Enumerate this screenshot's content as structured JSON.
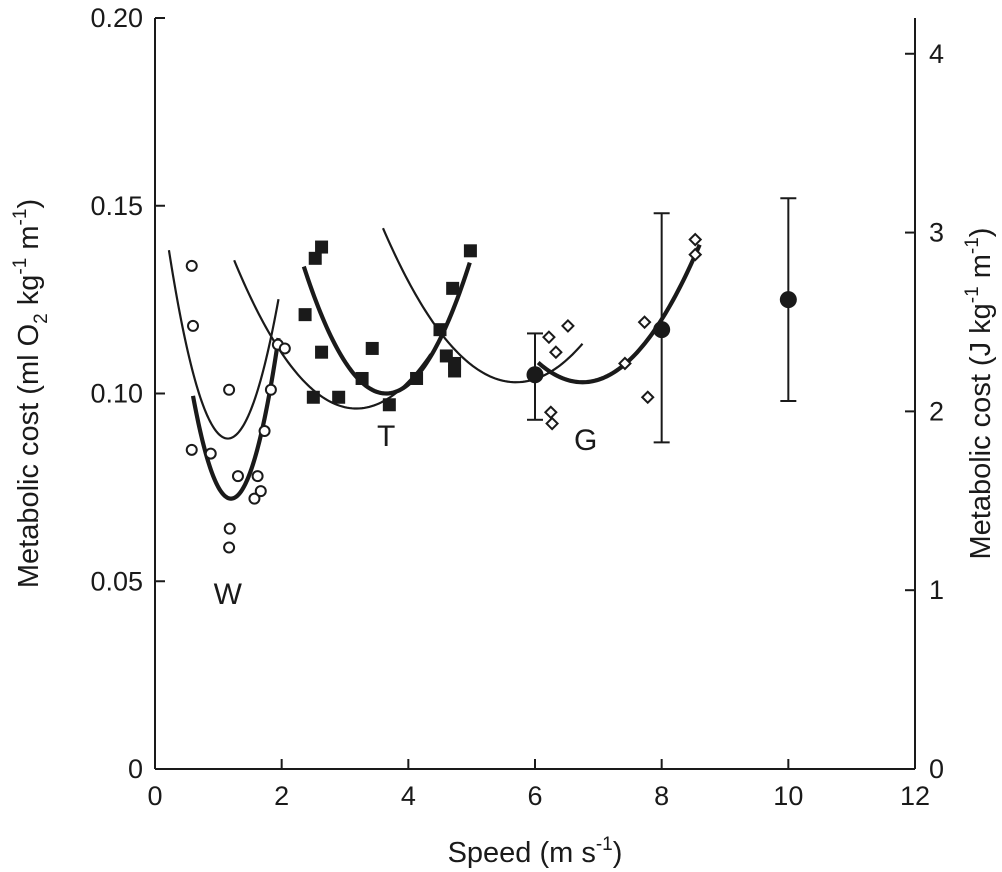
{
  "chart_data": {
    "type": "scatter",
    "title": "",
    "xlabel": "Speed (m s",
    "xlabel_sup": "-1",
    "xlabel_close": ")",
    "ylabel_left": {
      "prefix": "Metabolic cost (ml O",
      "sub": "2",
      "mid1": "  kg",
      "sup1": "-1",
      "mid2": " m",
      "sup2": "-1",
      "suffix": ")"
    },
    "ylabel_right": {
      "prefix": "Metabolic cost (J kg",
      "sup1": "-1",
      "mid": " m",
      "sup2": "-1",
      "suffix": ")"
    },
    "xlim": [
      0,
      12
    ],
    "ylim_left": [
      0,
      0.2
    ],
    "ylim_right": [
      0,
      4.2
    ],
    "x_ticks": [
      0,
      2,
      4,
      6,
      8,
      10,
      12
    ],
    "x_tick_labels": [
      "0",
      "2",
      "4",
      "6",
      "8",
      "10",
      "12"
    ],
    "y_left_ticks": [
      0,
      0.05,
      0.1,
      0.15,
      0.2
    ],
    "y_left_tick_labels": [
      "0",
      "0.05",
      "0.10",
      "0.15",
      "0.20"
    ],
    "y_right_ticks": [
      0,
      1,
      2,
      3,
      4
    ],
    "y_right_tick_labels": [
      "0",
      "1",
      "2",
      "3",
      "4"
    ],
    "grid": false,
    "group_labels": [
      {
        "text": "W",
        "x": 1.15,
        "y": 0.044
      },
      {
        "text": "T",
        "x": 3.65,
        "y": 0.086
      },
      {
        "text": "G",
        "x": 6.8,
        "y": 0.085
      }
    ],
    "series": [
      {
        "marker": "open-circle",
        "points": [
          [
            0.58,
            0.134
          ],
          [
            0.6,
            0.118
          ],
          [
            0.58,
            0.085
          ],
          [
            0.88,
            0.084
          ],
          [
            1.17,
            0.101
          ],
          [
            1.31,
            0.078
          ],
          [
            1.18,
            0.064
          ],
          [
            1.17,
            0.059
          ],
          [
            1.57,
            0.072
          ],
          [
            1.62,
            0.078
          ],
          [
            1.67,
            0.074
          ],
          [
            1.73,
            0.09
          ],
          [
            1.83,
            0.101
          ],
          [
            1.94,
            0.113
          ],
          [
            2.05,
            0.112
          ]
        ]
      },
      {
        "marker": "filled-square",
        "points": [
          [
            2.37,
            0.121
          ],
          [
            2.5,
            0.099
          ],
          [
            2.53,
            0.136
          ],
          [
            2.63,
            0.139
          ],
          [
            2.63,
            0.111
          ],
          [
            2.9,
            0.099
          ],
          [
            3.27,
            0.104
          ],
          [
            3.43,
            0.112
          ],
          [
            3.7,
            0.097
          ],
          [
            4.13,
            0.104
          ],
          [
            4.5,
            0.117
          ],
          [
            4.6,
            0.11
          ],
          [
            4.7,
            0.128
          ],
          [
            4.73,
            0.108
          ],
          [
            4.73,
            0.106
          ],
          [
            4.98,
            0.138
          ]
        ]
      },
      {
        "marker": "open-diamond",
        "points": [
          [
            6.22,
            0.115
          ],
          [
            6.33,
            0.111
          ],
          [
            6.52,
            0.118
          ],
          [
            6.25,
            0.095
          ],
          [
            6.27,
            0.092
          ],
          [
            7.42,
            0.108
          ],
          [
            7.73,
            0.119
          ],
          [
            7.78,
            0.099
          ],
          [
            8.53,
            0.141
          ],
          [
            8.53,
            0.137
          ]
        ]
      },
      {
        "marker": "filled-circle-errorbar",
        "points": [
          {
            "x": 6.0,
            "y": 0.105,
            "lo": 0.093,
            "hi": 0.116
          },
          {
            "x": 8.0,
            "y": 0.117,
            "lo": 0.087,
            "hi": 0.148
          },
          {
            "x": 10.0,
            "y": 0.125,
            "lo": 0.098,
            "hi": 0.152
          }
        ]
      }
    ],
    "curves": [
      {
        "weight": "thin",
        "min": [
          1.15,
          0.088
        ],
        "k": 0.058,
        "xrange": [
          0.22,
          1.95
        ]
      },
      {
        "weight": "thick",
        "min": [
          1.2,
          0.072
        ],
        "k": 0.076,
        "xrange": [
          0.6,
          1.95
        ]
      },
      {
        "weight": "thin",
        "min": [
          3.18,
          0.096
        ],
        "k": 0.0106,
        "xrange": [
          1.25,
          4.35
        ]
      },
      {
        "weight": "thick",
        "min": [
          3.65,
          0.1
        ],
        "k": 0.02,
        "xrange": [
          2.35,
          4.97
        ]
      },
      {
        "weight": "thin",
        "min": [
          5.7,
          0.103
        ],
        "k": 0.0093,
        "xrange": [
          3.6,
          6.75
        ]
      },
      {
        "weight": "thick",
        "min": [
          6.75,
          0.103
        ],
        "k": 0.0107,
        "xrange": [
          6.05,
          8.6
        ]
      }
    ]
  }
}
